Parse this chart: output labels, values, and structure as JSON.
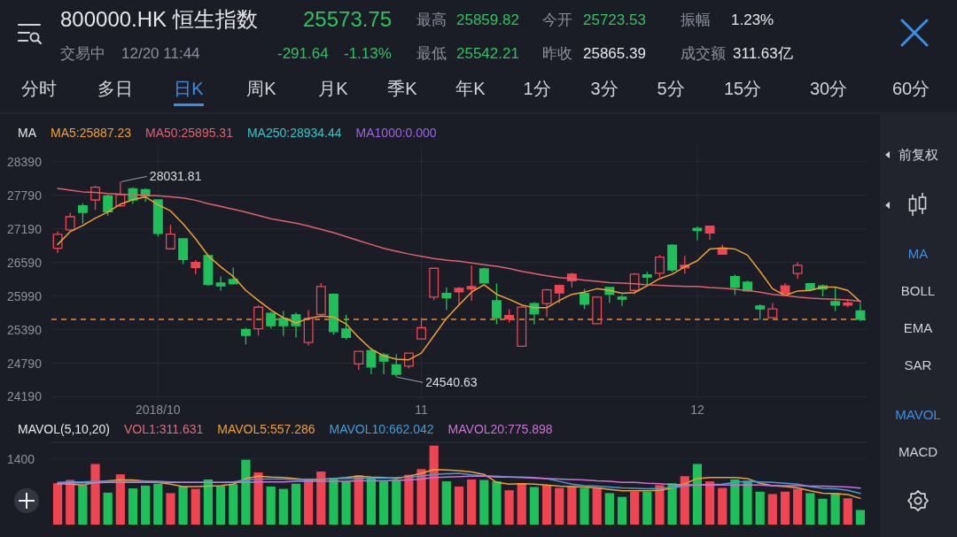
{
  "chart_data": [
    {
      "type": "other",
      "title": "800000.HK 恒生指数",
      "annotations": [
        "25573.75",
        "最高",
        "25859.82",
        "今开",
        "25723.53",
        "振幅",
        "1.23%",
        "交易中",
        "12/20 11:44",
        "-291.64",
        "-1.13%",
        "最低",
        "25542.21",
        "昨收",
        "25865.39",
        "成交额",
        "311.63亿"
      ]
    },
    {
      "type": "other",
      "annotations": [
        "分时",
        "多日",
        "日K",
        "周K",
        "月K",
        "季K",
        "年K",
        "1分",
        "3分",
        "5分",
        "15分",
        "30分",
        "60分"
      ]
    },
    {
      "type": "candlestick",
      "legend_title": "MA",
      "legend": "top left",
      "grid": true,
      "ylim": [
        24150,
        28670
      ],
      "yticks": [
        28390,
        27790,
        27190,
        26590,
        25990,
        25390,
        24790,
        24190
      ],
      "categories": [
        null,
        null,
        null,
        null,
        null,
        null,
        null,
        null,
        "2018/10",
        null,
        null,
        null,
        null,
        null,
        null,
        null,
        null,
        null,
        null,
        null,
        null,
        null,
        null,
        null,
        null,
        null,
        null,
        null,
        null,
        "11",
        null,
        null,
        null,
        null,
        null,
        null,
        null,
        null,
        null,
        null,
        null,
        null,
        null,
        null,
        null,
        null,
        null,
        null,
        null,
        null,
        null,
        "12",
        null,
        null,
        null,
        null,
        null,
        null,
        null,
        null,
        null,
        null,
        null,
        null,
        null
      ],
      "ohlc": [
        [
          26843,
          27143,
          26759,
          27091
        ],
        [
          27170,
          27475,
          27143,
          27406
        ],
        [
          27601,
          27643,
          27285,
          27485
        ],
        [
          27706,
          27959,
          27527,
          27933
        ],
        [
          27780,
          27801,
          27422,
          27496
        ],
        [
          27601,
          28031.81,
          27580,
          27801
        ],
        [
          27906,
          27933,
          27633,
          27706
        ],
        [
          27890,
          27917,
          27669,
          27775
        ],
        [
          27706,
          27717,
          27054,
          27106
        ],
        [
          26833,
          27264,
          26822,
          27096
        ],
        [
          27012,
          27022,
          26559,
          26643
        ],
        [
          26501,
          26633,
          26380,
          26591
        ],
        [
          26712,
          26722,
          26170,
          26196
        ],
        [
          26222,
          26338,
          26085,
          26170
        ],
        [
          26285,
          26496,
          26191,
          26212
        ],
        [
          25391,
          25422,
          25127,
          25285
        ],
        [
          25406,
          25827,
          25285,
          25790
        ],
        [
          25680,
          25706,
          25406,
          25459
        ],
        [
          25591,
          25722,
          25275,
          25459
        ],
        [
          25654,
          25696,
          25249,
          25459
        ],
        [
          25159,
          25738,
          25106,
          25591
        ],
        [
          25659,
          26222,
          25643,
          26159
        ],
        [
          26022,
          26033,
          25301,
          25354
        ],
        [
          25401,
          25654,
          25212,
          25249
        ],
        [
          24775,
          25012,
          24670,
          25001
        ],
        [
          25012,
          25064,
          24591,
          24722
        ],
        [
          24938,
          24970,
          24591,
          24827
        ],
        [
          24759,
          24948,
          24540.63,
          24591
        ],
        [
          24738,
          24980,
          24696,
          24970
        ],
        [
          25222,
          25601,
          25212,
          25422
        ],
        [
          25970,
          26496,
          25917,
          26485
        ],
        [
          26038,
          26143,
          25738,
          25959
        ],
        [
          26064,
          26148,
          25827,
          26127
        ],
        [
          26117,
          26538,
          25906,
          26159
        ],
        [
          26475,
          26496,
          26212,
          26222
        ],
        [
          25906,
          26212,
          25485,
          25601
        ],
        [
          25580,
          25759,
          25512,
          25643
        ],
        [
          25091,
          25812,
          25080,
          25791
        ],
        [
          25854,
          25880,
          25485,
          25670
        ],
        [
          25854,
          26117,
          25617,
          26101
        ],
        [
          26043,
          26191,
          25864,
          26180
        ],
        [
          26264,
          26406,
          26143,
          26380
        ],
        [
          26038,
          26117,
          25759,
          25843
        ],
        [
          25496,
          25985,
          25485,
          25970
        ],
        [
          26143,
          26154,
          25864,
          26022
        ],
        [
          25970,
          26012,
          25812,
          25933
        ],
        [
          26090,
          26401,
          26022,
          26380
        ],
        [
          26369,
          26422,
          26170,
          26327
        ],
        [
          26396,
          26722,
          26327,
          26685
        ],
        [
          26896,
          26917,
          26412,
          26454
        ],
        [
          26496,
          26706,
          26391,
          26538
        ],
        [
          27196,
          27233,
          26985,
          27159
        ],
        [
          27117,
          27248,
          26996,
          27238
        ],
        [
          26738,
          26906,
          26727,
          26827
        ],
        [
          26338,
          26370,
          26012,
          26143
        ],
        [
          26238,
          26264,
          26064,
          26080
        ],
        [
          25812,
          25843,
          25564,
          25759
        ],
        [
          25601,
          25864,
          25591,
          25759
        ],
        [
          26038,
          26222,
          26001,
          26170
        ],
        [
          26391,
          26591,
          26301,
          26538
        ],
        [
          26212,
          26222,
          26090,
          26106
        ],
        [
          26170,
          26196,
          25985,
          26117
        ],
        [
          25890,
          26143,
          25722,
          25827
        ],
        [
          25827,
          25933,
          25791,
          25865.39
        ],
        [
          25723.53,
          25859.82,
          25542.21,
          25573.75
        ]
      ],
      "colors": [
        "#ef4452",
        "#ef4452",
        "#1fbf5a",
        "#ef4452",
        "#1fbf5a",
        "#ef4452",
        "#1fbf5a",
        "#1fbf5a",
        "#1fbf5a",
        "#ef4452",
        "#1fbf5a",
        "#ef4452",
        "#1fbf5a",
        "#1fbf5a",
        "#1fbf5a",
        "#1fbf5a",
        "#ef4452",
        "#1fbf5a",
        "#1fbf5a",
        "#1fbf5a",
        "#ef4452",
        "#ef4452",
        "#1fbf5a",
        "#1fbf5a",
        "#ef4452",
        "#1fbf5a",
        "#1fbf5a",
        "#1fbf5a",
        "#ef4452",
        "#ef4452",
        "#ef4452",
        "#1fbf5a",
        "#ef4452",
        "#ef4452",
        "#1fbf5a",
        "#1fbf5a",
        "#ef4452",
        "#ef4452",
        "#1fbf5a",
        "#ef4452",
        "#ef4452",
        "#ef4452",
        "#1fbf5a",
        "#ef4452",
        "#1fbf5a",
        "#1fbf5a",
        "#ef4452",
        "#1fbf5a",
        "#ef4452",
        "#1fbf5a",
        "#ef4452",
        "#1fbf5a",
        "#ef4452",
        "#ef4452",
        "#1fbf5a",
        "#1fbf5a",
        "#1fbf5a",
        "#ef4452",
        "#ef4452",
        "#ef4452",
        "#1fbf5a",
        "#1fbf5a",
        "#1fbf5a",
        "#ef4452",
        "#1fbf5a"
      ],
      "series": [
        {
          "name": "MA5:25887.23",
          "type": "line",
          "color": "#f0a030",
          "values": [
            26910,
            27140,
            27250,
            27380,
            27490,
            27630,
            27710,
            27760,
            27620,
            27510,
            27280,
            27010,
            26710,
            26510,
            26340,
            26090,
            25910,
            25740,
            25600,
            25510,
            25590,
            25630,
            25610,
            25490,
            25250,
            25040,
            24920,
            24860,
            24850,
            24970,
            25280,
            25590,
            25830,
            26060,
            26190,
            26020,
            25930,
            25830,
            25780,
            25780,
            25910,
            26020,
            26060,
            26120,
            26090,
            26040,
            26050,
            26170,
            26300,
            26380,
            26510,
            26620,
            26830,
            26850,
            26830,
            26720,
            26430,
            26120,
            26000,
            26080,
            26090,
            26150,
            26150,
            26090,
            25887.23
          ]
        },
        {
          "name": "MA50:25895.31",
          "type": "line",
          "color": "#e2606e",
          "values": [
            27910,
            27880,
            27850,
            27840,
            27820,
            27810,
            27800,
            27790,
            27780,
            27760,
            27740,
            27700,
            27640,
            27590,
            27540,
            27490,
            27430,
            27370,
            27330,
            27290,
            27240,
            27180,
            27120,
            27050,
            26980,
            26910,
            26840,
            26790,
            26740,
            26700,
            26660,
            26630,
            26610,
            26580,
            26550,
            26520,
            26480,
            26430,
            26390,
            26350,
            26320,
            26300,
            26270,
            26250,
            26230,
            26220,
            26210,
            26190,
            26180,
            26170,
            26160,
            26160,
            26140,
            26130,
            26110,
            26090,
            26060,
            26020,
            26000,
            25970,
            25950,
            25940,
            25930,
            25920,
            25895.31
          ]
        },
        {
          "name": "MA250:28934.44",
          "type": "line",
          "color": "#2ec8c8",
          "values": [
            null,
            null,
            null,
            null,
            null,
            null,
            null,
            null,
            null,
            null,
            null,
            null,
            null,
            null,
            null,
            null,
            null,
            null,
            null,
            null,
            null,
            null,
            null,
            null,
            null,
            null,
            null,
            null,
            null,
            null,
            null,
            null,
            null,
            null,
            null,
            null,
            null,
            null,
            null,
            null,
            null,
            null,
            null,
            null,
            null,
            null,
            null,
            null,
            null,
            null,
            null,
            null,
            null,
            null,
            null,
            null,
            null,
            null,
            null,
            null,
            null,
            null,
            null,
            null,
            null
          ]
        },
        {
          "name": "MA1000:0.000",
          "type": "line",
          "color": "#9d63e6",
          "values": [
            null,
            null,
            null,
            null,
            null,
            null,
            null,
            null,
            null,
            null,
            null,
            null,
            null,
            null,
            null,
            null,
            null,
            null,
            null,
            null,
            null,
            null,
            null,
            null,
            null,
            null,
            null,
            null,
            null,
            null,
            null,
            null,
            null,
            null,
            null,
            null,
            null,
            null,
            null,
            null,
            null,
            null,
            null,
            null,
            null,
            null,
            null,
            null,
            null,
            null,
            null,
            null,
            null,
            null,
            null,
            null,
            null,
            null,
            null,
            null,
            null,
            null,
            null,
            null,
            null
          ]
        }
      ],
      "ref_lines": [
        {
          "axis": "y",
          "value": 25573.75,
          "color": "#f08a30",
          "line_style": "dashed"
        }
      ],
      "annotations": [
        "28031.81",
        "24540.63"
      ]
    },
    {
      "type": "bar",
      "legend_title": "MAVOL(5,10,20)",
      "legend": "top left",
      "grid": "y",
      "tick_labels": "y",
      "ylim": [
        0,
        1750
      ],
      "yticks": [
        1400
      ],
      "categories": [
        null,
        null,
        null,
        null,
        null,
        null,
        null,
        null,
        null,
        null,
        null,
        null,
        null,
        null,
        null,
        null,
        null,
        null,
        null,
        null,
        null,
        null,
        null,
        null,
        null,
        null,
        null,
        null,
        null,
        null,
        null,
        null,
        null,
        null,
        null,
        null,
        null,
        null,
        null,
        null,
        null,
        null,
        null,
        null,
        null,
        null,
        null,
        null,
        null,
        null,
        null,
        null,
        null,
        null,
        null,
        null,
        null,
        null,
        null,
        null,
        null,
        null,
        null,
        null,
        null
      ],
      "series": [
        {
          "name": "VOL1:311.631",
          "type": "bar",
          "color": "#e4697a",
          "colors": [
            "#ef4452",
            "#ef4452",
            "#1fbf5a",
            "#ef4452",
            "#1fbf5a",
            "#ef4452",
            "#1fbf5a",
            "#1fbf5a",
            "#1fbf5a",
            "#ef4452",
            "#1fbf5a",
            "#ef4452",
            "#1fbf5a",
            "#1fbf5a",
            "#1fbf5a",
            "#1fbf5a",
            "#ef4452",
            "#1fbf5a",
            "#1fbf5a",
            "#1fbf5a",
            "#ef4452",
            "#ef4452",
            "#1fbf5a",
            "#1fbf5a",
            "#ef4452",
            "#1fbf5a",
            "#1fbf5a",
            "#1fbf5a",
            "#ef4452",
            "#ef4452",
            "#ef4452",
            "#1fbf5a",
            "#ef4452",
            "#ef4452",
            "#1fbf5a",
            "#1fbf5a",
            "#ef4452",
            "#ef4452",
            "#1fbf5a",
            "#ef4452",
            "#ef4452",
            "#ef4452",
            "#1fbf5a",
            "#ef4452",
            "#1fbf5a",
            "#1fbf5a",
            "#ef4452",
            "#1fbf5a",
            "#ef4452",
            "#1fbf5a",
            "#ef4452",
            "#1fbf5a",
            "#ef4452",
            "#ef4452",
            "#1fbf5a",
            "#1fbf5a",
            "#1fbf5a",
            "#ef4452",
            "#ef4452",
            "#ef4452",
            "#1fbf5a",
            "#1fbf5a",
            "#1fbf5a",
            "#ef4452",
            "#1fbf5a"
          ],
          "values": [
            880,
            950,
            840,
            1290,
            680,
            1070,
            770,
            830,
            870,
            670,
            810,
            760,
            960,
            820,
            860,
            1380,
            1110,
            810,
            760,
            870,
            980,
            1130,
            960,
            920,
            1050,
            980,
            920,
            950,
            1060,
            1180,
            1680,
            920,
            810,
            960,
            950,
            920,
            730,
            880,
            800,
            840,
            780,
            820,
            780,
            790,
            670,
            590,
            700,
            700,
            840,
            880,
            1030,
            1290,
            920,
            780,
            960,
            930,
            700,
            650,
            700,
            760,
            670,
            550,
            670,
            560,
            311.631
          ]
        },
        {
          "name": "MAVOL5:557.286",
          "type": "line",
          "color": "#f0a030",
          "values": [
            870,
            860,
            840,
            900,
            930,
            950,
            950,
            920,
            900,
            860,
            810,
            810,
            820,
            830,
            860,
            980,
            1030,
            1010,
            1000,
            980,
            950,
            960,
            980,
            1000,
            1030,
            1010,
            1000,
            980,
            1030,
            1090,
            1170,
            1160,
            1150,
            1120,
            1070,
            900,
            860,
            870,
            860,
            840,
            820,
            810,
            800,
            780,
            750,
            720,
            720,
            720,
            730,
            780,
            870,
            980,
            1000,
            1000,
            1000,
            980,
            880,
            830,
            810,
            780,
            720,
            670,
            660,
            640,
            557.286
          ]
        },
        {
          "name": "MAVOL10:662.042",
          "type": "line",
          "color": "#3aa0dc",
          "values": [
            900,
            910,
            910,
            920,
            920,
            920,
            920,
            920,
            920,
            910,
            900,
            900,
            900,
            900,
            910,
            950,
            970,
            970,
            970,
            960,
            960,
            970,
            980,
            980,
            980,
            990,
            990,
            1000,
            1010,
            1030,
            1070,
            1080,
            1090,
            1060,
            1040,
            1030,
            1010,
            1010,
            1000,
            980,
            920,
            860,
            830,
            820,
            800,
            780,
            770,
            760,
            770,
            790,
            820,
            840,
            850,
            860,
            900,
            920,
            910,
            900,
            880,
            860,
            810,
            770,
            760,
            730,
            662.042
          ]
        },
        {
          "name": "MAVOL20:775.898",
          "type": "line",
          "color": "#d070d8",
          "values": [
            880,
            890,
            890,
            890,
            900,
            900,
            900,
            900,
            900,
            900,
            900,
            900,
            900,
            900,
            900,
            900,
            910,
            910,
            910,
            920,
            920,
            920,
            920,
            920,
            930,
            930,
            930,
            940,
            950,
            970,
            1000,
            1010,
            1020,
            1030,
            1030,
            1010,
            1010,
            1000,
            990,
            980,
            970,
            960,
            950,
            930,
            920,
            900,
            900,
            880,
            870,
            850,
            850,
            840,
            840,
            840,
            840,
            840,
            840,
            830,
            830,
            830,
            820,
            820,
            810,
            800,
            775.898
          ]
        }
      ]
    },
    {
      "type": "other",
      "annotations": [
        "前复权",
        "MA",
        "BOLL",
        "EMA",
        "SAR",
        "MAVOL",
        "MACD"
      ]
    }
  ]
}
